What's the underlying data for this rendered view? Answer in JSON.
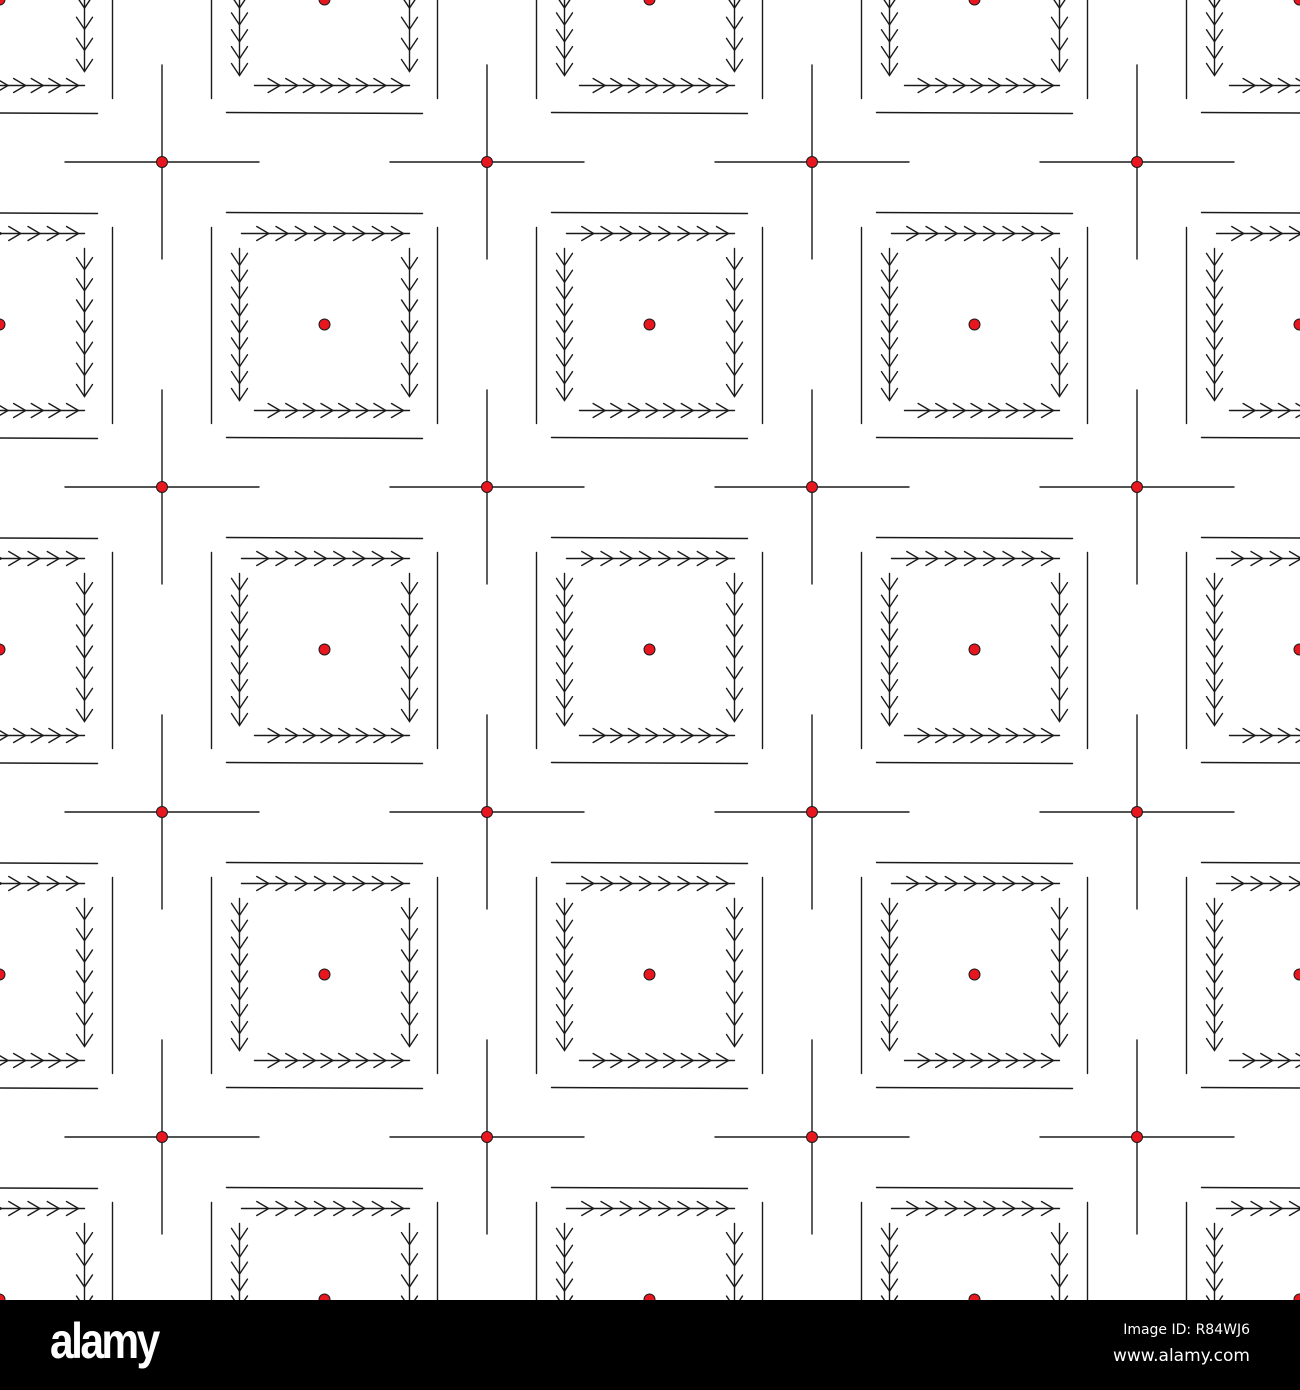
{
  "pattern": {
    "line_color": "#1a1a1a",
    "dot_color": "#e8161f",
    "background": "#ffffff",
    "motif": [
      "square-of-chevron-arrows-with-center-dot",
      "cross-with-center-dot"
    ]
  },
  "watermark": {
    "logo": "alamy",
    "image_id": "Image ID: R84WJ6",
    "site": "www.alamy.com"
  }
}
